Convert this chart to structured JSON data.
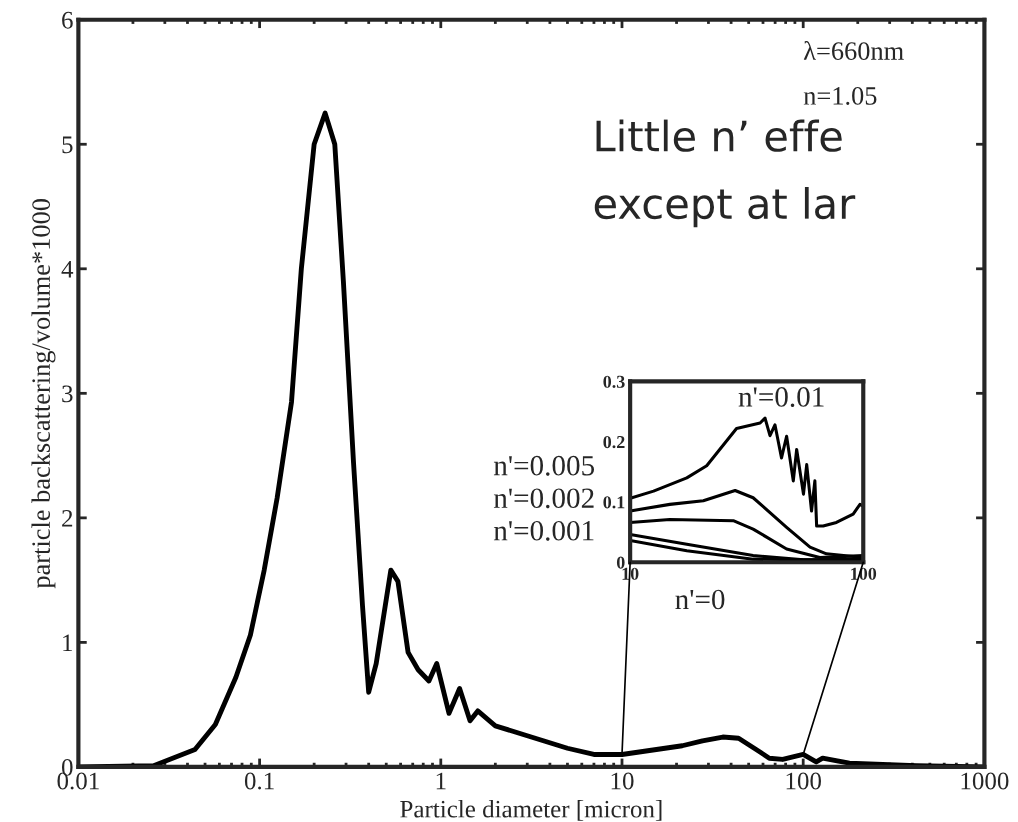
{
  "chart_data": [
    {
      "type": "line",
      "xlabel": "Particle diameter [micron]",
      "ylabel": "particle backscattering/volume*1000",
      "log": "x",
      "xlim": [
        0.01,
        1000
      ],
      "xticks": [
        0.01,
        0.1,
        1,
        10,
        100,
        1000
      ],
      "ylim": [
        0,
        6
      ],
      "yticks": [
        0,
        1,
        2,
        3,
        4,
        5,
        6
      ],
      "grid": false,
      "line_style": "solid",
      "annotations": [
        "λ=660nm",
        "n=1.05",
        "Little n’ effe",
        "except at lar"
      ],
      "series": [
        {
          "color": "#000000",
          "x": [
            0.01,
            0.026,
            0.044,
            0.057,
            0.074,
            0.089,
            0.106,
            0.125,
            0.15,
            0.17,
            0.2,
            0.23,
            0.26,
            0.29,
            0.33,
            0.37,
            0.4,
            0.44,
            0.53,
            0.58,
            0.66,
            0.75,
            0.86,
            0.95,
            1.11,
            1.27,
            1.45,
            1.6,
            2,
            3,
            5,
            7,
            10,
            21.5,
            27.8,
            36,
            44,
            55,
            65,
            77,
            100,
            118,
            128,
            180,
            420,
            1000
          ],
          "values": [
            0,
            0.01,
            0.14,
            0.34,
            0.72,
            1.06,
            1.58,
            2.16,
            2.93,
            4.0,
            5.0,
            5.25,
            5.0,
            3.9,
            2.44,
            1.29,
            0.6,
            0.83,
            1.58,
            1.49,
            0.92,
            0.78,
            0.69,
            0.83,
            0.43,
            0.63,
            0.37,
            0.45,
            0.33,
            0.25,
            0.15,
            0.1,
            0.1,
            0.17,
            0.21,
            0.24,
            0.23,
            0.14,
            0.07,
            0.06,
            0.1,
            0.04,
            0.07,
            0.03,
            0.01,
            0
          ]
        }
      ]
    },
    {
      "type": "line",
      "log": "x",
      "xlim": [
        10,
        100
      ],
      "xticks": [
        10,
        100
      ],
      "ylim": [
        0,
        0.3
      ],
      "yticks": [
        0,
        0.1,
        0.2,
        0.3
      ],
      "grid": false,
      "line_style": "solid",
      "annotations": [
        "n'=0.01",
        "n'=0.005",
        "n'=0.002",
        "n'=0.001",
        "n'=0"
      ],
      "series": [
        {
          "color": "#000000",
          "x": [
            10,
            12.6,
            17.5,
            21.3,
            28.6,
            36.1,
            37.9,
            39.8,
            41.8,
            44.6,
            46.9,
            50.1,
            51.8,
            55.4,
            57.2,
            60.0,
            62.0,
            63.1,
            67.3,
            76.7,
            90.5,
            96.8,
            100
          ],
          "values": [
            0.106,
            0.118,
            0.14,
            0.16,
            0.222,
            0.231,
            0.239,
            0.21,
            0.228,
            0.173,
            0.209,
            0.135,
            0.187,
            0.113,
            0.162,
            0.085,
            0.135,
            0.06,
            0.06,
            0.066,
            0.08,
            0.096,
            0.093
          ]
        },
        {
          "color": "#000000",
          "x": [
            10,
            14.8,
            20.6,
            28.2,
            33.7,
            46.9,
            59.1,
            69.5,
            100
          ],
          "values": [
            0.085,
            0.096,
            0.102,
            0.119,
            0.107,
            0.058,
            0.025,
            0.014,
            0.008
          ]
        },
        {
          "color": "#000000",
          "x": [
            10,
            14.8,
            27.7,
            33.7,
            46.9,
            65.1,
            100
          ],
          "values": [
            0.066,
            0.071,
            0.069,
            0.055,
            0.022,
            0.008,
            0.011
          ]
        },
        {
          "color": "#000000",
          "x": [
            10,
            17.5,
            33.7,
            55.4,
            100
          ],
          "values": [
            0.046,
            0.03,
            0.011,
            0.004,
            0.005
          ]
        },
        {
          "color": "#000000",
          "x": [
            10,
            17.5,
            33.7,
            100
          ],
          "values": [
            0.036,
            0.019,
            0.005,
            0.003
          ]
        }
      ]
    }
  ]
}
